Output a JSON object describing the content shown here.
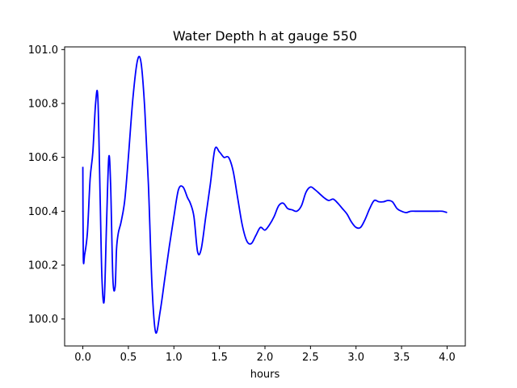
{
  "chart_data": {
    "type": "line",
    "title": "Water Depth h at gauge 550",
    "xlabel": "hours",
    "ylabel": "",
    "xlim": [
      -0.2,
      4.2
    ],
    "ylim": [
      99.9,
      101.01
    ],
    "xticks": [
      0.0,
      0.5,
      1.0,
      1.5,
      2.0,
      2.5,
      3.0,
      3.5,
      4.0
    ],
    "xtick_labels": [
      "0.0",
      "0.5",
      "1.0",
      "1.5",
      "2.0",
      "2.5",
      "3.0",
      "3.5",
      "4.0"
    ],
    "yticks": [
      100.0,
      100.2,
      100.4,
      100.6,
      100.8,
      101.0
    ],
    "ytick_labels": [
      "100.0",
      "100.2",
      "100.4",
      "100.6",
      "100.8",
      "101.0"
    ],
    "grid": false,
    "legend": "none",
    "series": [
      {
        "color": "#0000ff",
        "x": [
          0.0,
          0.005,
          0.02,
          0.05,
          0.08,
          0.11,
          0.14,
          0.165,
          0.19,
          0.21,
          0.235,
          0.26,
          0.285,
          0.305,
          0.33,
          0.355,
          0.37,
          0.39,
          0.42,
          0.46,
          0.5,
          0.55,
          0.6,
          0.64,
          0.68,
          0.72,
          0.76,
          0.8,
          0.85,
          0.9,
          0.95,
          1.0,
          1.05,
          1.1,
          1.15,
          1.18,
          1.22,
          1.26,
          1.3,
          1.35,
          1.4,
          1.45,
          1.5,
          1.55,
          1.6,
          1.65,
          1.7,
          1.75,
          1.8,
          1.85,
          1.9,
          1.95,
          2.0,
          2.05,
          2.1,
          2.15,
          2.2,
          2.25,
          2.3,
          2.35,
          2.4,
          2.45,
          2.5,
          2.55,
          2.6,
          2.65,
          2.7,
          2.75,
          2.8,
          2.85,
          2.9,
          2.95,
          3.0,
          3.05,
          3.1,
          3.15,
          3.2,
          3.25,
          3.3,
          3.35,
          3.4,
          3.45,
          3.5,
          3.55,
          3.6,
          3.65,
          3.7,
          3.75,
          3.8,
          3.85,
          3.9,
          3.95,
          4.0
        ],
        "y": [
          100.565,
          100.23,
          100.24,
          100.32,
          100.52,
          100.62,
          100.8,
          100.82,
          100.45,
          100.15,
          100.07,
          100.35,
          100.6,
          100.5,
          100.15,
          100.12,
          100.26,
          100.32,
          100.36,
          100.44,
          100.6,
          100.82,
          100.96,
          100.95,
          100.78,
          100.5,
          100.12,
          99.95,
          100.03,
          100.15,
          100.27,
          100.38,
          100.48,
          100.49,
          100.45,
          100.43,
          100.38,
          100.25,
          100.26,
          100.38,
          100.5,
          100.63,
          100.62,
          100.6,
          100.6,
          100.55,
          100.45,
          100.35,
          100.29,
          100.28,
          100.31,
          100.34,
          100.33,
          100.35,
          100.38,
          100.42,
          100.43,
          100.41,
          100.405,
          100.4,
          100.42,
          100.47,
          100.49,
          100.48,
          100.465,
          100.45,
          100.44,
          100.445,
          100.43,
          100.41,
          100.39,
          100.36,
          100.34,
          100.34,
          100.37,
          100.41,
          100.44,
          100.435,
          100.435,
          100.44,
          100.435,
          100.41,
          100.4,
          100.395,
          100.4,
          100.4,
          100.4,
          100.4,
          100.4,
          100.4,
          100.4,
          100.4,
          100.395
        ]
      }
    ]
  }
}
